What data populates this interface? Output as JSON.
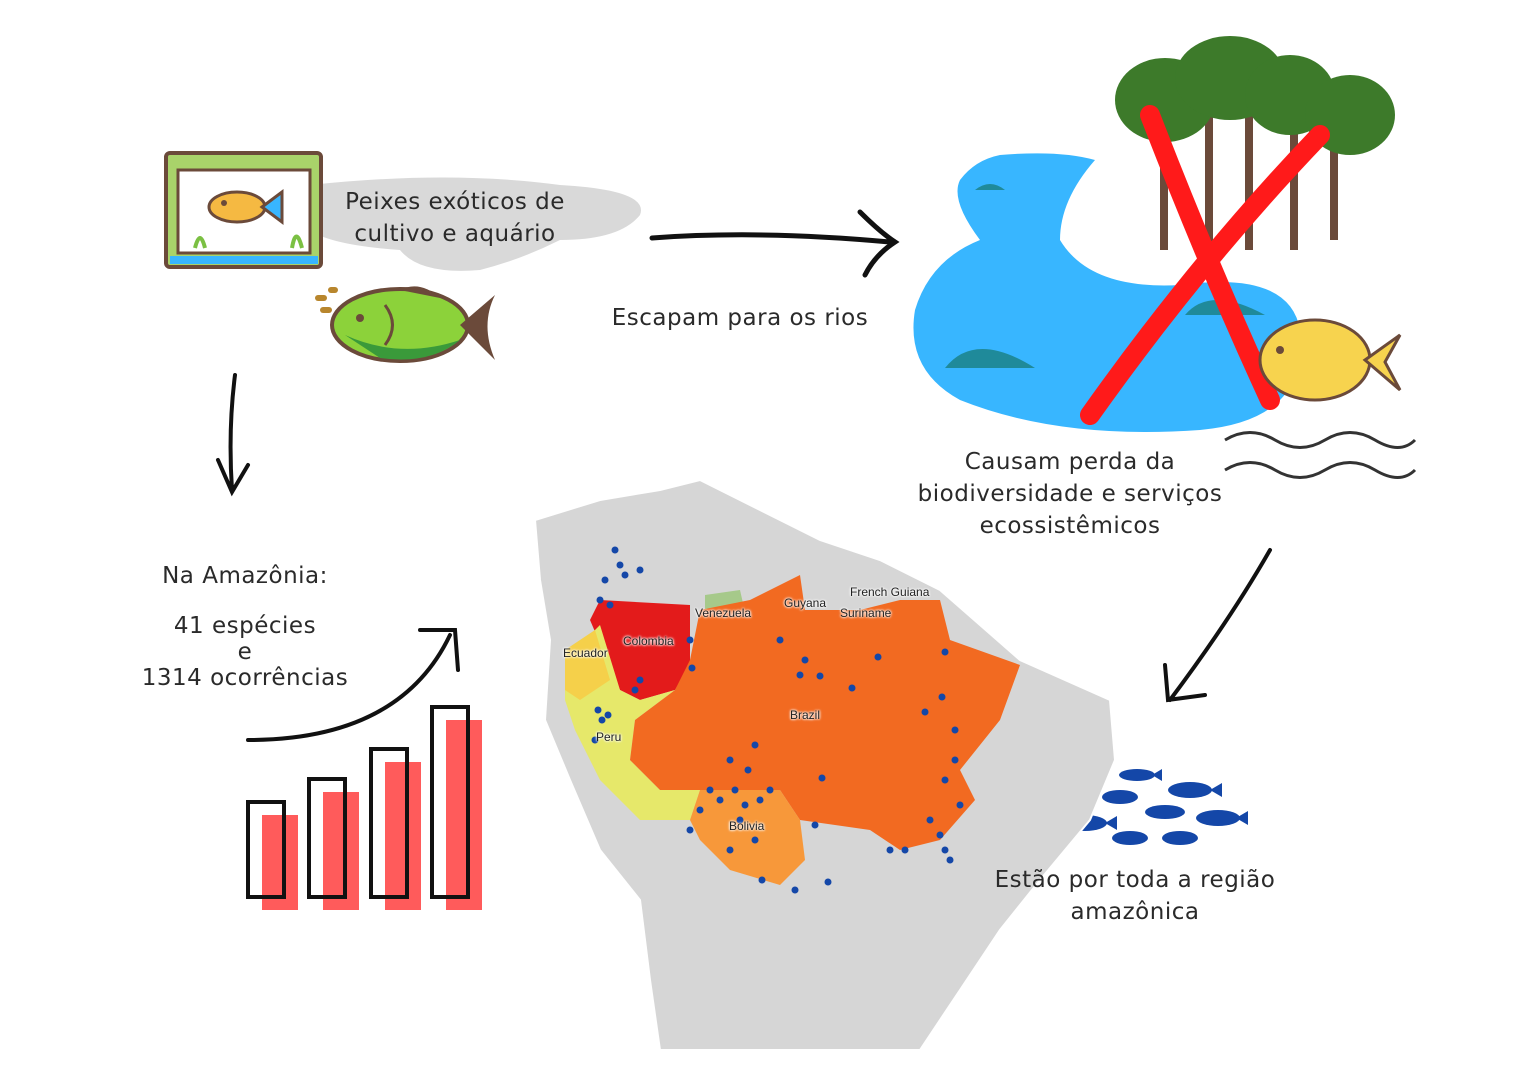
{
  "texts": {
    "aquarium_caption": "Peixes exóticos de cultivo e aquário",
    "escape_caption": "Escapam para os rios",
    "impact_caption": "Causam perda da biodiversidade e serviços ecossistêmicos",
    "spread_caption": "Estão por toda a região amazônica",
    "amazon_heading": "Na Amazônia:",
    "species_count": "41 espécies",
    "conjunction": "e",
    "occurrence_count": "1314 ocorrências"
  },
  "map_labels": {
    "venezuela": "Venezuela",
    "guyana": "Guyana",
    "suriname": "Suriname",
    "french_guiana": "French Guiana",
    "colombia": "Colombia",
    "ecuador": "Ecuador",
    "peru": "Peru",
    "brazil": "Brazil",
    "bolivia": "Bolivia"
  },
  "colors": {
    "brazil": "#f26a21",
    "peru": "#e6e86a",
    "colombia": "#e31b1b",
    "bolivia": "#f7983a",
    "ecuador": "#f5d04a",
    "venezuela": "#a6c98a",
    "land": "#d6d6d6",
    "occurrence_dot": "#1447a8",
    "water": "#38b6ff",
    "cross": "#ff1a1a",
    "bar_fill": "#ff5b5b"
  }
}
